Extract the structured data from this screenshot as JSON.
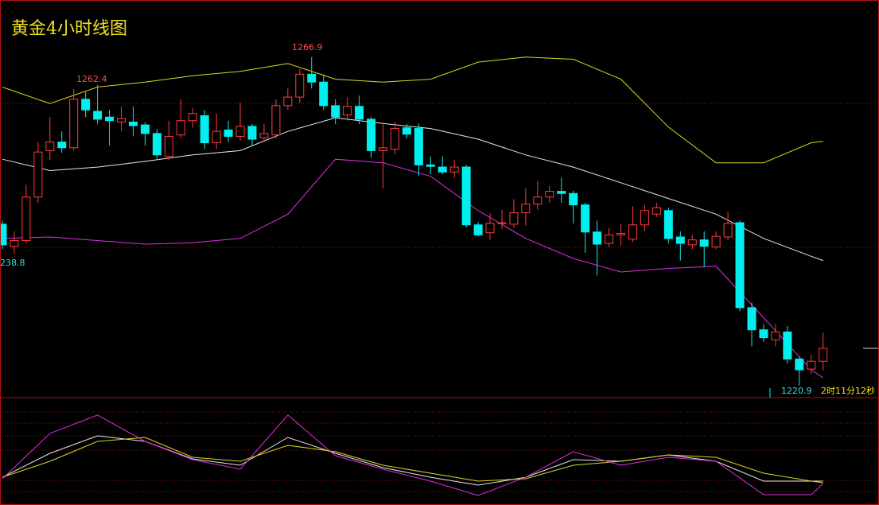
{
  "chart_data": {
    "type": "candlestick",
    "title": "黄金4小时线图",
    "annotations": [
      "1262.4",
      "1266.9",
      "238.8",
      "1220.9"
    ],
    "countdown": "2时11分12秒",
    "up_color": "#ff3c3c",
    "down_color": "#00f0f0",
    "xlim": [
      -0.2,
      73.7
    ],
    "ylim": [
      1219.2,
      1274.9
    ],
    "open": [
      1243.5,
      1240.4,
      1241.2,
      1247.3,
      1253.8,
      1255.0,
      1254.2,
      1261.0,
      1259.3,
      1258.5,
      1257.8,
      1257.8,
      1257.4,
      1256.2,
      1253.0,
      1256.0,
      1258.0,
      1258.7,
      1254.9,
      1256.7,
      1255.8,
      1257.2,
      1255.6,
      1256.0,
      1260.1,
      1261.3,
      1264.5,
      1263.4,
      1260.1,
      1258.8,
      1260.0,
      1258.2,
      1253.8,
      1254.0,
      1257.0,
      1256.9,
      1251.8,
      1251.5,
      1250.8,
      1251.5,
      1243.4,
      1242.3,
      1243.6,
      1243.5,
      1245.1,
      1246.3,
      1247.3,
      1248.1,
      1247.8,
      1246.2,
      1242.4,
      1240.8,
      1242.0,
      1241.4,
      1243.4,
      1244.9,
      1245.4,
      1241.7,
      1240.6,
      1241.3,
      1240.3,
      1241.7,
      1243.7,
      1231.8,
      1228.7,
      1227.3,
      1228.4,
      1224.6,
      1223.2,
      1224.3
    ],
    "high": [
      1244.0,
      1242.5,
      1249.0,
      1255.0,
      1258.5,
      1256.5,
      1262.4,
      1262.0,
      1263.0,
      1259.5,
      1260.0,
      1260.0,
      1257.8,
      1256.8,
      1258.0,
      1261.0,
      1259.8,
      1259.5,
      1259.0,
      1258.0,
      1260.5,
      1257.5,
      1257.5,
      1261.0,
      1262.5,
      1265.2,
      1266.9,
      1264.5,
      1261.0,
      1261.3,
      1261.5,
      1258.5,
      1257.5,
      1257.8,
      1257.5,
      1257.6,
      1253.0,
      1253.0,
      1252.5,
      1251.8,
      1243.8,
      1245.0,
      1245.5,
      1247.0,
      1248.5,
      1249.5,
      1248.8,
      1250.0,
      1248.2,
      1246.5,
      1244.0,
      1243.0,
      1243.5,
      1246.0,
      1246.2,
      1246.5,
      1245.8,
      1242.5,
      1242.0,
      1242.5,
      1242.5,
      1245.2,
      1244.0,
      1232.5,
      1229.5,
      1229.5,
      1229.2,
      1225.0,
      1225.2,
      1228.3
    ],
    "low": [
      1240.0,
      1239.3,
      1240.8,
      1246.5,
      1252.5,
      1253.5,
      1253.8,
      1258.5,
      1257.5,
      1254.5,
      1256.5,
      1255.8,
      1254.5,
      1252.5,
      1252.5,
      1255.5,
      1257.0,
      1254.0,
      1254.0,
      1255.0,
      1255.2,
      1254.5,
      1255.0,
      1255.5,
      1259.5,
      1260.5,
      1262.5,
      1259.5,
      1257.5,
      1258.0,
      1257.5,
      1252.8,
      1248.5,
      1253.3,
      1255.5,
      1250.3,
      1250.5,
      1250.5,
      1250.0,
      1243.0,
      1241.8,
      1241.3,
      1242.8,
      1243.0,
      1243.3,
      1245.5,
      1246.5,
      1246.5,
      1243.6,
      1239.5,
      1236.3,
      1240.3,
      1240.5,
      1241.0,
      1242.5,
      1244.5,
      1240.8,
      1238.4,
      1240.0,
      1237.5,
      1240.0,
      1241.3,
      1231.3,
      1226.4,
      1227.0,
      1226.4,
      1224.0,
      1220.9,
      1222.5,
      1223.0
    ],
    "close": [
      1240.6,
      1241.2,
      1247.3,
      1253.6,
      1255.0,
      1254.2,
      1261.0,
      1259.5,
      1258.2,
      1258.0,
      1258.3,
      1257.3,
      1256.2,
      1253.2,
      1255.8,
      1258.0,
      1259.0,
      1254.9,
      1256.5,
      1255.8,
      1257.2,
      1255.4,
      1256.2,
      1260.1,
      1261.3,
      1264.5,
      1263.4,
      1260.1,
      1258.5,
      1260.0,
      1258.2,
      1253.8,
      1254.2,
      1256.9,
      1256.1,
      1251.8,
      1251.6,
      1250.8,
      1251.5,
      1243.4,
      1242.0,
      1243.6,
      1243.7,
      1245.1,
      1246.3,
      1247.3,
      1248.1,
      1247.8,
      1246.2,
      1242.4,
      1240.7,
      1242.0,
      1242.2,
      1243.4,
      1245.4,
      1245.8,
      1241.5,
      1240.8,
      1241.3,
      1240.4,
      1241.8,
      1243.6,
      1231.8,
      1228.7,
      1227.6,
      1228.4,
      1224.6,
      1223.1,
      1224.3,
      1226.1
    ],
    "bands": {
      "x": [
        0,
        4,
        8,
        12,
        16,
        20,
        24,
        28,
        32,
        36,
        40,
        44,
        48,
        52,
        56,
        60,
        64,
        68,
        69
      ],
      "series": [
        {
          "color": "#d8d820",
          "values": [
            1262.7,
            1260.4,
            1262.7,
            1263.4,
            1264.3,
            1264.9,
            1266.0,
            1263.8,
            1263.4,
            1263.8,
            1266.2,
            1266.9,
            1266.6,
            1263.8,
            1257.1,
            1252.1,
            1252.1,
            1254.9,
            1255.1
          ]
        },
        {
          "color": "#e8e8e8",
          "values": [
            1252.6,
            1251.0,
            1251.5,
            1252.3,
            1253.2,
            1253.8,
            1256.5,
            1258.4,
            1257.6,
            1256.9,
            1255.4,
            1253.2,
            1251.5,
            1249.3,
            1247.1,
            1244.9,
            1241.5,
            1239.0,
            1238.4
          ]
        },
        {
          "color": "#e030e0",
          "values": [
            1241.5,
            1241.7,
            1241.2,
            1240.7,
            1240.9,
            1241.5,
            1244.9,
            1252.6,
            1252.1,
            1250.2,
            1245.4,
            1241.5,
            1238.7,
            1236.8,
            1237.3,
            1237.6,
            1230.4,
            1223.1,
            1222.0
          ]
        }
      ]
    },
    "indicator": {
      "ylim": [
        -12.8,
        114.7
      ],
      "series": [
        {
          "color": "#e8e8e8",
          "values": [
            20.2,
            48.6,
            69.4,
            62.8,
            42,
            34.4,
            67.5,
            48.6,
            31.6,
            20.2,
            10.8,
            20.2,
            41,
            39.1,
            46.7,
            39.1,
            15.5,
            15.5,
            15.5
          ]
        },
        {
          "color": "#d8d820",
          "values": [
            20.2,
            39.1,
            62.8,
            67.5,
            43.9,
            39.1,
            58,
            50.5,
            34.4,
            25,
            15.5,
            18.4,
            34.4,
            39.1,
            46.7,
            43.9,
            25,
            15.5,
            13.6
          ]
        },
        {
          "color": "#e030e0",
          "values": [
            18.4,
            72.2,
            94,
            62.8,
            41,
            29.7,
            94,
            45.8,
            29.7,
            15.5,
            -1.5,
            20.2,
            50.5,
            34.4,
            43.9,
            39.1,
            -0.5,
            -0.5,
            12.7
          ]
        }
      ]
    }
  }
}
